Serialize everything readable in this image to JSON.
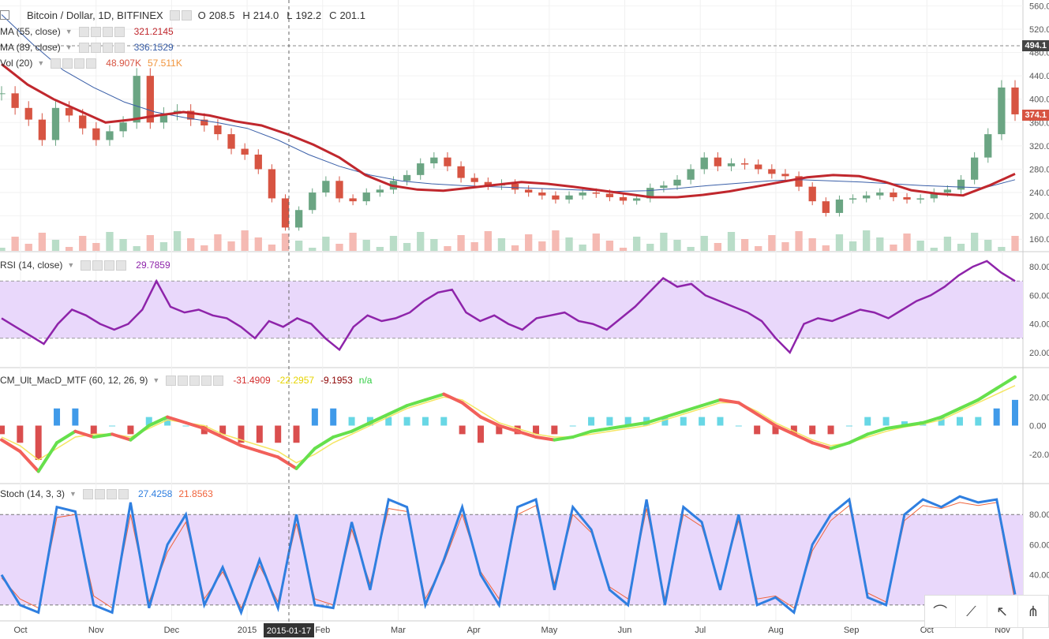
{
  "header": {
    "symbol": "Bitcoin / Dollar, 1D, BITFINEX",
    "o_label": "O",
    "o": "208.5",
    "h_label": "H",
    "h": "214.0",
    "l_label": "L",
    "l": "192.2",
    "c_label": "C",
    "c": "201.1"
  },
  "legends": {
    "ma55": {
      "label": "MA (55, close)",
      "value": "321.2145"
    },
    "ma89": {
      "label": "MA (89, close)",
      "value": "336.1529"
    },
    "vol": {
      "label": "Vol (20)",
      "value1": "48.907K",
      "value2": "57.511K"
    },
    "rsi": {
      "label": "RSI (14, close)",
      "value": "29.7859"
    },
    "macd": {
      "label": "CM_Ult_MacD_MTF (60, 12, 26, 9)",
      "v1": "-31.4909",
      "v2": "-22.2957",
      "v3": "-9.1953",
      "v4": "n/a"
    },
    "stoch": {
      "label": "Stoch (14, 3, 3)",
      "v1": "27.4258",
      "v2": "21.8563"
    }
  },
  "price_tags": {
    "current": "494.1",
    "last": "374.1"
  },
  "crosshair_date": "2015-01-17",
  "colors": {
    "up": "#6ba583",
    "down": "#d75442",
    "ma55": "#c0272d",
    "ma89": "#3a5fa8",
    "rsi": "#8e24aa",
    "stoch_k": "#2f7fe0",
    "stoch_d": "#f0643c",
    "band": "#e9d8fb"
  },
  "toolbar_icons": [
    "brush-icon",
    "trendline-icon",
    "cursor-icon",
    "pitchfork-icon"
  ],
  "chart_data": [
    {
      "type": "candlestick",
      "title": "Bitcoin / Dollar, 1D, BITFINEX",
      "x_ticks": [
        "Oct",
        "Nov",
        "Dec",
        "2015",
        "Feb",
        "Mar",
        "Apr",
        "May",
        "Jun",
        "Jul",
        "Aug",
        "Sep",
        "Oct",
        "Nov"
      ],
      "y_ticks": [
        160,
        200,
        240,
        280,
        320,
        360,
        400,
        440,
        480,
        520,
        560
      ],
      "ylim": [
        140,
        570
      ],
      "series": [
        {
          "name": "Price",
          "values": [
            410,
            385,
            365,
            330,
            385,
            372,
            350,
            330,
            345,
            360,
            440,
            360,
            375,
            380,
            365,
            355,
            340,
            315,
            305,
            280,
            230,
            180,
            210,
            240,
            260,
            230,
            225,
            240,
            245,
            260,
            270,
            290,
            300,
            285,
            265,
            258,
            252,
            255,
            245,
            240,
            235,
            228,
            235,
            240,
            238,
            232,
            226,
            230,
            248,
            252,
            262,
            280,
            300,
            285,
            290,
            288,
            280,
            272,
            268,
            250,
            225,
            205,
            228,
            230,
            235,
            240,
            232,
            228,
            230,
            240,
            245,
            262,
            300,
            340,
            420,
            374
          ]
        },
        {
          "name": "MA (55, close)",
          "values": [
            460,
            425,
            400,
            380,
            360,
            365,
            372,
            378,
            372,
            362,
            355,
            340,
            322,
            300,
            270,
            252,
            245,
            243,
            248,
            253,
            258,
            255,
            250,
            244,
            238,
            232,
            232,
            236,
            242,
            250,
            258,
            266,
            270,
            268,
            258,
            244,
            238,
            235,
            252,
            272
          ]
        },
        {
          "name": "MA (89, close)",
          "values": [
            545,
            495,
            450,
            420,
            395,
            378,
            368,
            360,
            350,
            330,
            305,
            285,
            270,
            260,
            255,
            252,
            250,
            248,
            246,
            244,
            242,
            243,
            247,
            252,
            256,
            260,
            262,
            260,
            258,
            255,
            252,
            250,
            248,
            262
          ]
        }
      ]
    },
    {
      "type": "line",
      "title": "RSI (14, close)",
      "y_ticks": [
        20,
        40,
        60,
        80
      ],
      "ylim": [
        10,
        90
      ],
      "series": [
        {
          "name": "RSI",
          "values": [
            44,
            38,
            32,
            26,
            40,
            50,
            46,
            40,
            36,
            40,
            50,
            70,
            52,
            48,
            50,
            46,
            44,
            38,
            30,
            42,
            38,
            44,
            40,
            30,
            22,
            38,
            46,
            42,
            44,
            48,
            56,
            62,
            64,
            48,
            42,
            46,
            40,
            36,
            44,
            46,
            48,
            42,
            40,
            36,
            44,
            52,
            62,
            72,
            66,
            68,
            60,
            56,
            52,
            48,
            42,
            30,
            20,
            40,
            44,
            42,
            46,
            50,
            48,
            44,
            50,
            56,
            60,
            66,
            74,
            80,
            84,
            76,
            70
          ]
        }
      ]
    },
    {
      "type": "line",
      "title": "CM_Ult_MacD_MTF (60, 12, 26, 9)",
      "y_ticks": [
        -20,
        0,
        20
      ],
      "ylim": [
        -40,
        40
      ],
      "series": [
        {
          "name": "MACD",
          "values": [
            -10,
            -18,
            -32,
            -12,
            -4,
            -8,
            -6,
            -10,
            0,
            6,
            2,
            -2,
            -8,
            -14,
            -18,
            -22,
            -30,
            -16,
            -8,
            -4,
            2,
            8,
            14,
            18,
            22,
            16,
            6,
            0,
            -4,
            -8,
            -10,
            -8,
            -4,
            -2,
            0,
            2,
            6,
            10,
            14,
            18,
            16,
            8,
            0,
            -6,
            -12,
            -16,
            -12,
            -6,
            -2,
            0,
            2,
            6,
            12,
            18,
            26,
            34
          ]
        },
        {
          "name": "Signal",
          "values": [
            -8,
            -14,
            -24,
            -16,
            -8,
            -6,
            -6,
            -8,
            -2,
            4,
            2,
            0,
            -6,
            -10,
            -14,
            -18,
            -26,
            -20,
            -12,
            -6,
            0,
            6,
            12,
            16,
            20,
            18,
            10,
            2,
            -2,
            -6,
            -8,
            -8,
            -6,
            -4,
            -2,
            0,
            4,
            8,
            12,
            16,
            16,
            10,
            2,
            -4,
            -10,
            -14,
            -12,
            -8,
            -4,
            -1,
            1,
            4,
            10,
            16,
            22,
            28
          ]
        }
      ]
    },
    {
      "type": "line",
      "title": "Stoch (14, 3, 3)",
      "y_ticks": [
        20,
        40,
        60,
        80
      ],
      "ylim": [
        10,
        100
      ],
      "series": [
        {
          "name": "%K",
          "values": [
            40,
            20,
            15,
            85,
            82,
            20,
            15,
            88,
            18,
            60,
            80,
            20,
            45,
            15,
            50,
            18,
            80,
            20,
            18,
            75,
            30,
            90,
            85,
            20,
            50,
            85,
            40,
            20,
            85,
            90,
            30,
            85,
            70,
            30,
            20,
            90,
            20,
            85,
            75,
            30,
            80,
            20,
            25,
            15,
            60,
            80,
            90,
            25,
            20,
            80,
            90,
            85,
            92,
            88,
            90,
            27
          ]
        },
        {
          "name": "%D",
          "values": [
            38,
            24,
            18,
            78,
            80,
            26,
            18,
            80,
            22,
            55,
            75,
            24,
            42,
            18,
            46,
            22,
            74,
            24,
            20,
            70,
            34,
            84,
            82,
            24,
            48,
            80,
            42,
            24,
            80,
            86,
            34,
            80,
            68,
            32,
            24,
            84,
            24,
            80,
            72,
            32,
            76,
            24,
            26,
            18,
            56,
            76,
            86,
            28,
            22,
            76,
            86,
            84,
            88,
            86,
            88,
            22
          ]
        }
      ]
    }
  ]
}
